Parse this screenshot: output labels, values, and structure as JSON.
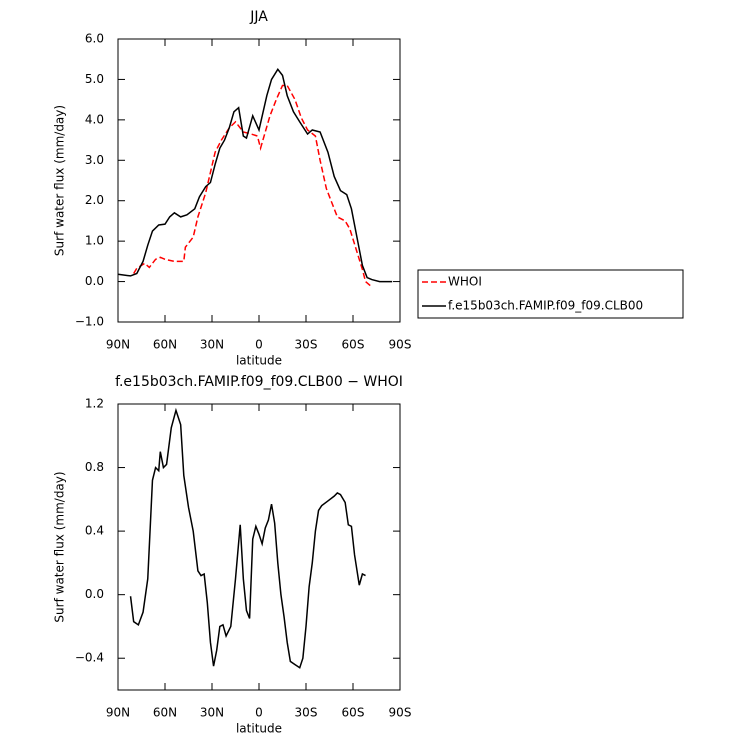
{
  "chart_data": [
    {
      "type": "line",
      "title": "JJA",
      "xlabel": "latitude",
      "ylabel": "Surf water flux (mm/day)",
      "xlim": [
        90,
        -90
      ],
      "xticks": [
        {
          "value": 90,
          "label": "90N"
        },
        {
          "value": 60,
          "label": "60N"
        },
        {
          "value": 30,
          "label": "30N"
        },
        0,
        {
          "value": -30,
          "label": "30S"
        },
        {
          "value": -60,
          "label": "60S"
        },
        {
          "value": -90,
          "label": "90S"
        }
      ],
      "ylim": [
        -1,
        6
      ],
      "yticks": [
        {
          "value": -1,
          "label": "−1.0"
        },
        {
          "value": 0,
          "label": "0.0"
        },
        {
          "value": 1,
          "label": "1.0"
        },
        {
          "value": 2,
          "label": "2.0"
        },
        {
          "value": 3,
          "label": "3.0"
        },
        {
          "value": 4,
          "label": "4.0"
        },
        {
          "value": 5,
          "label": "5.0"
        },
        {
          "value": 6,
          "label": "6.0"
        }
      ],
      "legend": "right",
      "series": [
        {
          "name": "WHOI",
          "color": "#ff0000",
          "line_style": "dashed",
          "x": [
            80,
            78,
            73,
            70,
            66,
            63,
            60,
            54,
            48,
            47,
            42,
            39,
            34,
            31,
            28,
            24,
            19,
            15,
            10,
            5,
            1,
            -1,
            -4,
            -7,
            -11,
            -15,
            -18,
            -23,
            -27,
            -31,
            -36,
            -39,
            -43,
            -47,
            -50,
            -55,
            -58,
            -62,
            -66,
            -68,
            -71
          ],
          "values": [
            0.2,
            0.33,
            0.45,
            0.35,
            0.55,
            0.6,
            0.55,
            0.5,
            0.5,
            0.85,
            1.1,
            1.6,
            2.2,
            2.7,
            3.2,
            3.5,
            3.8,
            3.95,
            3.7,
            3.65,
            3.6,
            3.3,
            3.7,
            4.1,
            4.5,
            4.85,
            4.85,
            4.5,
            4.05,
            3.75,
            3.6,
            3.0,
            2.3,
            1.9,
            1.6,
            1.5,
            1.3,
            0.8,
            0.3,
            0.0,
            -0.1
          ]
        },
        {
          "name": "f.e15b03ch.FAMIP.f09_f09.CLB00",
          "color": "#000000",
          "line_style": "solid",
          "x": [
            90,
            82,
            78,
            74,
            71,
            68,
            64,
            60,
            57,
            54,
            50,
            46,
            41,
            38,
            34,
            31,
            28,
            25,
            22,
            19,
            16,
            13,
            10,
            8,
            4,
            0,
            -5,
            -8,
            -12,
            -15,
            -18,
            -22,
            -26,
            -31,
            -34,
            -39,
            -44,
            -48,
            -52,
            -56,
            -59,
            -63,
            -66,
            -69,
            -72,
            -77,
            -85
          ],
          "values": [
            0.18,
            0.14,
            0.2,
            0.5,
            0.9,
            1.25,
            1.4,
            1.42,
            1.6,
            1.7,
            1.6,
            1.65,
            1.8,
            2.1,
            2.35,
            2.45,
            2.9,
            3.3,
            3.5,
            3.8,
            4.2,
            4.3,
            3.6,
            3.55,
            4.1,
            3.75,
            4.6,
            5.0,
            5.25,
            5.1,
            4.6,
            4.2,
            3.95,
            3.65,
            3.75,
            3.7,
            3.2,
            2.6,
            2.25,
            2.15,
            1.8,
            1.0,
            0.4,
            0.1,
            0.05,
            0.0,
            0.0
          ]
        }
      ]
    },
    {
      "type": "line",
      "title": "f.e15b03ch.FAMIP.f09_f09.CLB00 − WHOI",
      "xlabel": "latitude",
      "ylabel": "Surf water flux (mm/day)",
      "xlim": [
        90,
        -90
      ],
      "xticks": [
        {
          "value": 90,
          "label": "90N"
        },
        {
          "value": 60,
          "label": "60N"
        },
        {
          "value": 30,
          "label": "30N"
        },
        0,
        {
          "value": -30,
          "label": "30S"
        },
        {
          "value": -60,
          "label": "60S"
        },
        {
          "value": -90,
          "label": "90S"
        }
      ],
      "ylim": [
        -0.6,
        1.2
      ],
      "yticks": [
        {
          "value": -0.4,
          "label": "−0.4"
        },
        {
          "value": 0,
          "label": "0.0"
        },
        0.4,
        0.8,
        1.2
      ],
      "series": [
        {
          "color": "#000000",
          "line_style": "solid",
          "x": [
            82,
            80,
            77,
            74,
            71,
            68,
            66,
            64,
            63,
            61,
            59,
            56,
            53,
            50,
            48,
            45,
            42,
            39,
            37,
            35,
            33,
            31,
            29,
            27,
            25,
            23,
            21,
            18,
            15,
            12,
            10,
            8,
            6,
            4,
            2,
            0,
            -2,
            -4,
            -6,
            -8,
            -10,
            -12,
            -14,
            -16,
            -18,
            -20,
            -23,
            -26,
            -28,
            -30,
            -32,
            -34,
            -36,
            -38,
            -40,
            -44,
            -48,
            -50,
            -52,
            -55,
            -57,
            -59,
            -61,
            -64,
            -66,
            -68
          ],
          "values": [
            -0.01,
            -0.17,
            -0.19,
            -0.11,
            0.1,
            0.72,
            0.8,
            0.78,
            0.9,
            0.8,
            0.82,
            1.05,
            1.16,
            1.07,
            0.75,
            0.55,
            0.4,
            0.15,
            0.12,
            0.13,
            -0.05,
            -0.3,
            -0.45,
            -0.35,
            -0.2,
            -0.19,
            -0.26,
            -0.2,
            0.1,
            0.44,
            0.1,
            -0.1,
            -0.15,
            0.35,
            0.43,
            0.38,
            0.32,
            0.42,
            0.47,
            0.57,
            0.45,
            0.2,
            0.0,
            -0.14,
            -0.3,
            -0.42,
            -0.44,
            -0.46,
            -0.4,
            -0.2,
            0.05,
            0.2,
            0.4,
            0.53,
            0.56,
            0.59,
            0.62,
            0.64,
            0.63,
            0.58,
            0.44,
            0.43,
            0.25,
            0.06,
            0.13,
            0.12
          ]
        }
      ]
    }
  ]
}
